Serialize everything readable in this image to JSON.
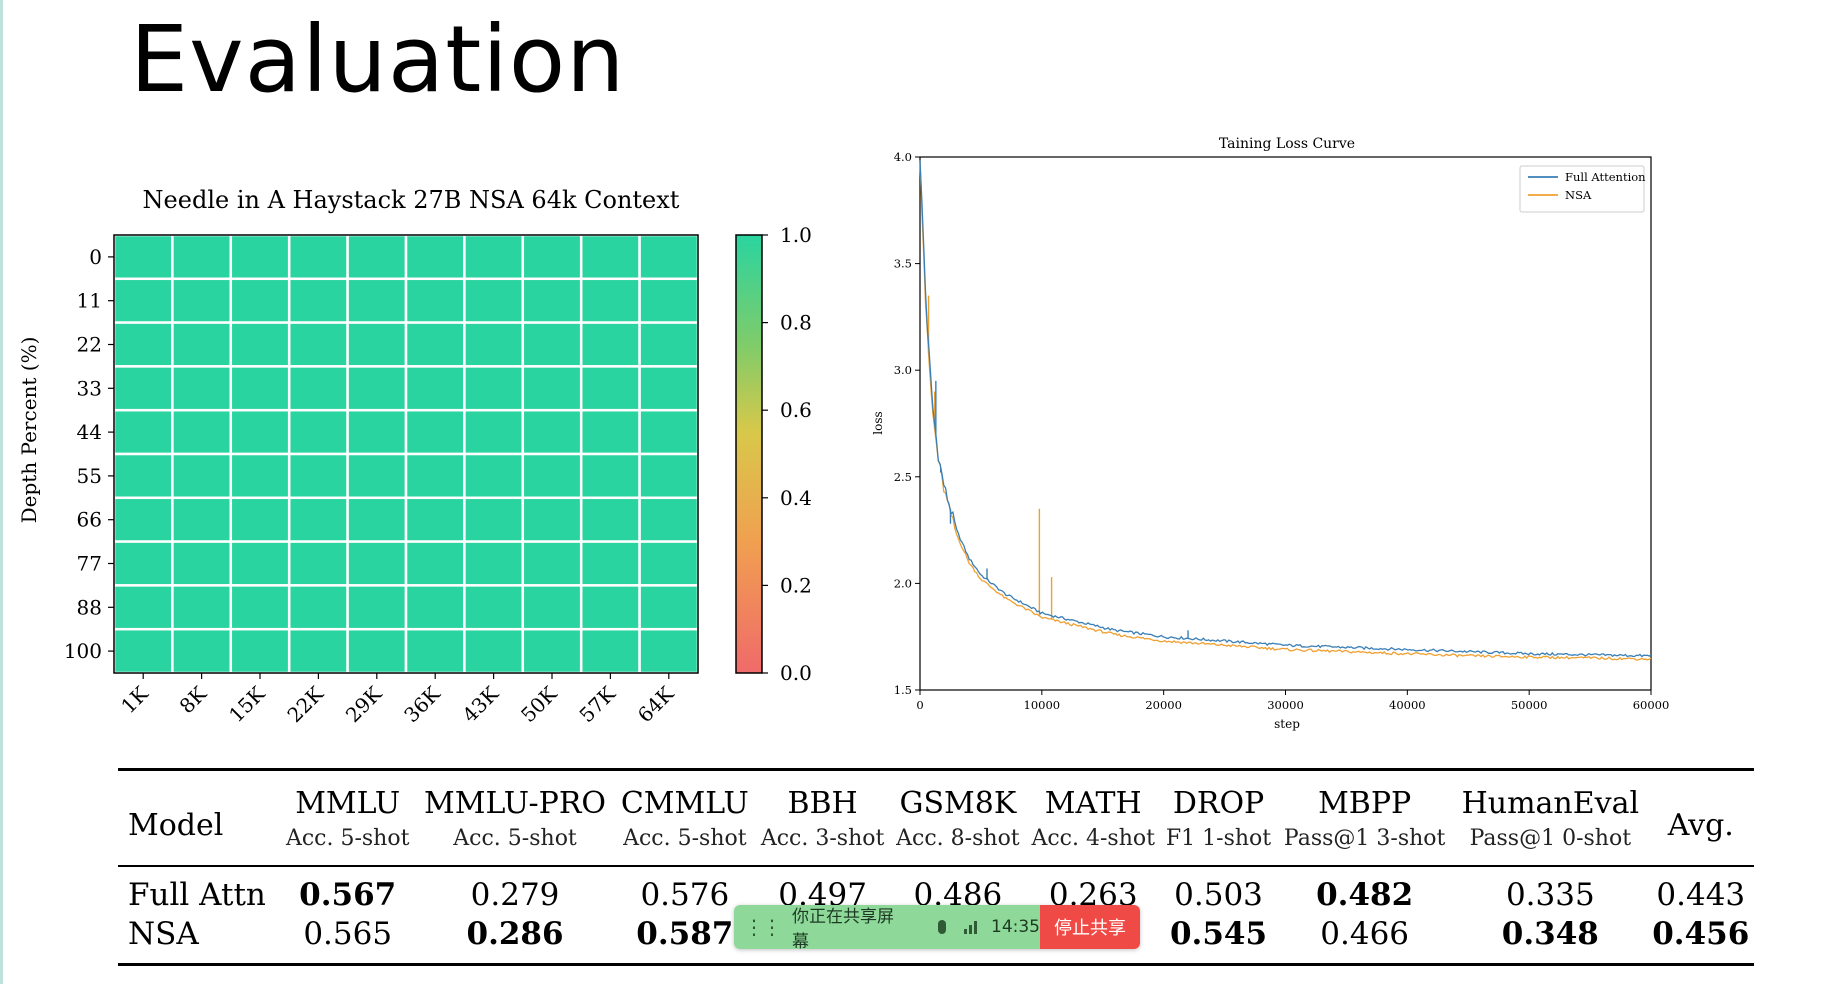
{
  "slide": {
    "title": "Evaluation"
  },
  "chart_data": [
    {
      "type": "heatmap",
      "title": "Needle in A Haystack 27B NSA 64k Context",
      "ylabel": "Depth Percent (%)",
      "xlabel": "",
      "x_categories": [
        "1K",
        "8K",
        "15K",
        "22K",
        "29K",
        "36K",
        "43K",
        "50K",
        "57K",
        "64K"
      ],
      "y_categories": [
        "0",
        "11",
        "22",
        "33",
        "44",
        "55",
        "66",
        "77",
        "88",
        "100"
      ],
      "values": [
        [
          1,
          1,
          1,
          1,
          1,
          1,
          1,
          1,
          1,
          1
        ],
        [
          1,
          1,
          1,
          1,
          1,
          1,
          1,
          1,
          1,
          1
        ],
        [
          1,
          1,
          1,
          1,
          1,
          1,
          1,
          1,
          1,
          1
        ],
        [
          1,
          1,
          1,
          1,
          1,
          1,
          1,
          1,
          1,
          1
        ],
        [
          1,
          1,
          1,
          1,
          1,
          1,
          1,
          1,
          1,
          1
        ],
        [
          1,
          1,
          1,
          1,
          1,
          1,
          1,
          1,
          1,
          1
        ],
        [
          1,
          1,
          1,
          1,
          1,
          1,
          1,
          1,
          1,
          1
        ],
        [
          1,
          1,
          1,
          1,
          1,
          1,
          1,
          1,
          1,
          1
        ],
        [
          1,
          1,
          1,
          1,
          1,
          1,
          1,
          1,
          1,
          1
        ],
        [
          1,
          1,
          1,
          1,
          1,
          1,
          1,
          1,
          1,
          1
        ]
      ],
      "colorbar": {
        "range": [
          0.0,
          1.0
        ],
        "ticks": [
          "1.0",
          "0.8",
          "0.6",
          "0.4",
          "0.2",
          "0.0"
        ]
      },
      "colors": {
        "high": "#2ad4a0",
        "mid": "#f2c94c",
        "low": "#f06a6a",
        "grid": "#ffffff"
      }
    },
    {
      "type": "line",
      "title": "Taining Loss Curve",
      "xlabel": "step",
      "ylabel": "loss",
      "xlim": [
        0,
        60000
      ],
      "ylim": [
        1.5,
        4.0
      ],
      "x_ticks": [
        "0",
        "10000",
        "20000",
        "30000",
        "40000",
        "50000",
        "60000"
      ],
      "y_ticks": [
        "4.0",
        "3.5",
        "3.0",
        "2.5",
        "2.0",
        "1.5"
      ],
      "legend_position": "top-right",
      "series": [
        {
          "name": "Full Attention",
          "color": "#3a7fb5",
          "points": [
            [
              0,
              4.0
            ],
            [
              500,
              3.3
            ],
            [
              1000,
              2.85
            ],
            [
              1500,
              2.6
            ],
            [
              2000,
              2.45
            ],
            [
              3000,
              2.25
            ],
            [
              4000,
              2.12
            ],
            [
              5000,
              2.04
            ],
            [
              7000,
              1.95
            ],
            [
              10000,
              1.86
            ],
            [
              13000,
              1.82
            ],
            [
              16000,
              1.78
            ],
            [
              20000,
              1.75
            ],
            [
              25000,
              1.73
            ],
            [
              30000,
              1.71
            ],
            [
              35000,
              1.7
            ],
            [
              40000,
              1.69
            ],
            [
              45000,
              1.68
            ],
            [
              50000,
              1.67
            ],
            [
              55000,
              1.665
            ],
            [
              60000,
              1.66
            ]
          ],
          "spikes": [
            [
              1300,
              2.95
            ],
            [
              1700,
              2.52
            ],
            [
              2500,
              2.28
            ],
            [
              5500,
              2.07
            ],
            [
              22000,
              1.78
            ]
          ]
        },
        {
          "name": "NSA",
          "color": "#f0a030",
          "points": [
            [
              0,
              4.0
            ],
            [
              500,
              3.25
            ],
            [
              1000,
              2.82
            ],
            [
              1500,
              2.58
            ],
            [
              2000,
              2.43
            ],
            [
              3000,
              2.23
            ],
            [
              4000,
              2.1
            ],
            [
              5000,
              2.02
            ],
            [
              7000,
              1.93
            ],
            [
              10000,
              1.84
            ],
            [
              13000,
              1.8
            ],
            [
              16000,
              1.76
            ],
            [
              20000,
              1.73
            ],
            [
              25000,
              1.71
            ],
            [
              30000,
              1.69
            ],
            [
              35000,
              1.68
            ],
            [
              40000,
              1.67
            ],
            [
              45000,
              1.66
            ],
            [
              50000,
              1.655
            ],
            [
              55000,
              1.65
            ],
            [
              60000,
              1.645
            ]
          ],
          "spikes": [
            [
              700,
              3.35
            ],
            [
              1200,
              2.9
            ],
            [
              9800,
              2.35
            ],
            [
              10800,
              2.03
            ]
          ]
        }
      ]
    },
    {
      "type": "table",
      "columns": [
        {
          "name": "MMLU",
          "metric": "Acc. 5-shot"
        },
        {
          "name": "MMLU-PRO",
          "metric": "Acc. 5-shot"
        },
        {
          "name": "CMMLU",
          "metric": "Acc. 5-shot"
        },
        {
          "name": "BBH",
          "metric": "Acc. 3-shot"
        },
        {
          "name": "GSM8K",
          "metric": "Acc. 8-shot"
        },
        {
          "name": "MATH",
          "metric": "Acc. 4-shot"
        },
        {
          "name": "DROP",
          "metric": "F1 1-shot"
        },
        {
          "name": "MBPP",
          "metric": "Pass@1 3-shot"
        },
        {
          "name": "HumanEval",
          "metric": "Pass@1 0-shot"
        }
      ],
      "model_header": "Model",
      "avg_header": "Avg.",
      "rows": [
        {
          "model": "Full Attn",
          "values": [
            "0.567",
            "0.279",
            "0.576",
            "0.497",
            "0.486",
            "0.263",
            "0.503",
            "0.482",
            "0.335",
            "0.443"
          ],
          "bold": [
            true,
            false,
            false,
            false,
            false,
            false,
            false,
            true,
            false,
            false
          ]
        },
        {
          "model": "NSA",
          "values": [
            "0.565",
            "0.286",
            "0.587",
            "",
            "",
            "",
            "0.545",
            "0.466",
            "0.348",
            "0.456"
          ],
          "bold": [
            false,
            true,
            true,
            false,
            false,
            false,
            true,
            false,
            true,
            true
          ]
        }
      ]
    }
  ],
  "share_bar": {
    "status": "你正在共享屏幕",
    "time": "14:35",
    "stop_label": "停止共享",
    "icons": [
      "drag-handle-icon",
      "microphone-icon",
      "signal-icon"
    ],
    "colors": {
      "bar": "#8ed99a",
      "stop": "#f04a47"
    }
  }
}
